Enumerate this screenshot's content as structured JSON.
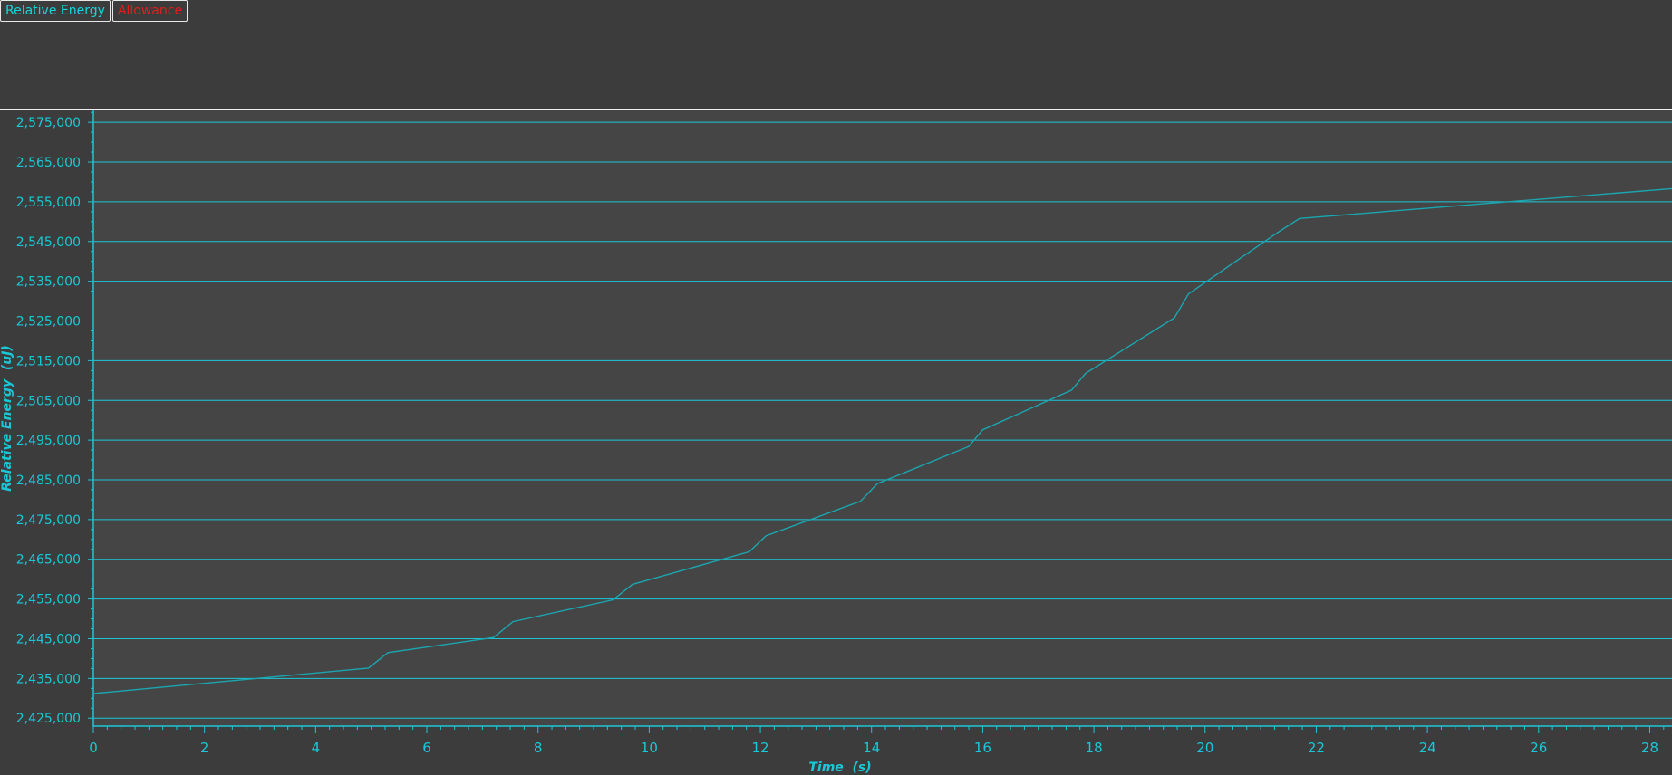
{
  "legend": {
    "items": [
      {
        "label": "Relative Energy",
        "color": "#19d3e0"
      },
      {
        "label": "Allowance",
        "color": "#e01e1e"
      }
    ]
  },
  "colors": {
    "background": "#3c3c3c",
    "plot_background": "#454545",
    "axis": "#19c8d8",
    "line": "#1aa6b0"
  },
  "chart_data": {
    "type": "line",
    "xlabel": "Time  (s)",
    "ylabel": "Relative Energy  (uJ)",
    "xlim": [
      0,
      28.4
    ],
    "ylim": [
      2423000,
      2578000
    ],
    "xticks": [
      0,
      2,
      4,
      6,
      8,
      10,
      12,
      14,
      16,
      18,
      20,
      22,
      24,
      26,
      28
    ],
    "yticks": [
      2425000,
      2435000,
      2445000,
      2455000,
      2465000,
      2475000,
      2485000,
      2495000,
      2505000,
      2515000,
      2525000,
      2535000,
      2545000,
      2555000,
      2565000,
      2575000
    ],
    "ytick_labels": [
      "2,425,000",
      "2,435,000",
      "2,445,000",
      "2,455,000",
      "2,465,000",
      "2,475,000",
      "2,485,000",
      "2,495,000",
      "2,505,000",
      "2,515,000",
      "2,525,000",
      "2,535,000",
      "2,545,000",
      "2,555,000",
      "2,565,000",
      "2,575,000"
    ],
    "grid": "horizontal",
    "series": [
      {
        "name": "Relative Energy",
        "x": [
          0,
          4.95,
          5.3,
          7.2,
          7.55,
          9.35,
          9.7,
          11.8,
          12.1,
          13.8,
          14.1,
          15.75,
          16.0,
          17.6,
          17.85,
          19.45,
          19.7,
          21.3,
          21.7,
          28.4
        ],
        "y": [
          2431200,
          2437600,
          2441500,
          2445300,
          2449300,
          2454800,
          2458700,
          2466900,
          2470900,
          2479600,
          2484000,
          2493400,
          2497600,
          2507600,
          2511800,
          2525800,
          2531800,
          2547200,
          2550800,
          2558300
        ]
      }
    ]
  }
}
